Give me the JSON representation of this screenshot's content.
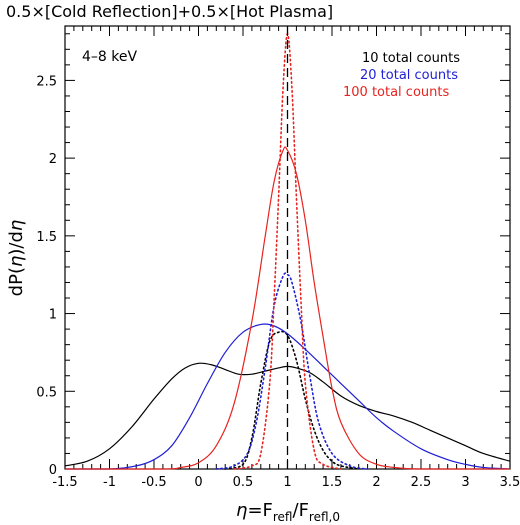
{
  "chart_data": {
    "type": "line",
    "title": "0.5×[Cold Reflection]+0.5×[Hot Plasma]",
    "xlabel": "η=F_refl/F_refl,0",
    "ylabel": "dP(η)/dη",
    "xlim": [
      -1.5,
      3.5
    ],
    "ylim": [
      0,
      2.85
    ],
    "xticks": [
      "-1.5",
      "-1",
      "-0.5",
      "0",
      "0.5",
      "1",
      "1.5",
      "2",
      "2.5",
      "3",
      "3.5"
    ],
    "yticks": [
      "0",
      "0.5",
      "1",
      "1.5",
      "2",
      "2.5"
    ],
    "annotations": [
      "4–8 keV"
    ],
    "reference_line_x": 1,
    "legend_placement": "top-right",
    "legend": [
      {
        "label": "10 total counts",
        "color": "#000000"
      },
      {
        "label": "20 total counts",
        "color": "#1f1fd6"
      },
      {
        "label": "100 total counts",
        "color": "#e8231f"
      }
    ],
    "series": [
      {
        "name": "10 total counts",
        "color": "#000000",
        "style": "solid",
        "x": [
          -1.5,
          -1.25,
          -1.0,
          -0.75,
          -0.5,
          -0.3,
          -0.15,
          0.0,
          0.15,
          0.3,
          0.45,
          0.6,
          0.75,
          0.9,
          1.0,
          1.1,
          1.25,
          1.4,
          1.6,
          1.8,
          2.0,
          2.2,
          2.4,
          2.6,
          2.8,
          3.0,
          3.2,
          3.5
        ],
        "y": [
          0.02,
          0.05,
          0.13,
          0.27,
          0.45,
          0.58,
          0.65,
          0.68,
          0.67,
          0.64,
          0.61,
          0.61,
          0.63,
          0.65,
          0.66,
          0.65,
          0.62,
          0.56,
          0.47,
          0.41,
          0.37,
          0.34,
          0.3,
          0.25,
          0.2,
          0.15,
          0.1,
          0.05
        ]
      },
      {
        "name": "10 total counts (inner)",
        "color": "#000000",
        "style": "dotted",
        "x": [
          0.3,
          0.5,
          0.6,
          0.7,
          0.8,
          0.9,
          1.0,
          1.1,
          1.2,
          1.3,
          1.4,
          1.5,
          1.6,
          1.8
        ],
        "y": [
          0.0,
          0.03,
          0.2,
          0.55,
          0.82,
          0.88,
          0.86,
          0.7,
          0.45,
          0.25,
          0.12,
          0.05,
          0.02,
          0.0
        ]
      },
      {
        "name": "20 total counts",
        "color": "#1f1fd6",
        "style": "solid",
        "x": [
          -1.5,
          -1.0,
          -0.7,
          -0.5,
          -0.3,
          -0.1,
          0.1,
          0.3,
          0.5,
          0.7,
          0.85,
          1.0,
          1.2,
          1.4,
          1.6,
          1.8,
          2.0,
          2.2,
          2.5,
          2.8,
          3.0,
          3.2,
          3.5
        ],
        "y": [
          0.0,
          0.0,
          0.02,
          0.06,
          0.15,
          0.33,
          0.55,
          0.75,
          0.88,
          0.93,
          0.92,
          0.87,
          0.77,
          0.66,
          0.55,
          0.44,
          0.33,
          0.24,
          0.13,
          0.06,
          0.03,
          0.01,
          0.0
        ]
      },
      {
        "name": "20 total counts (inner)",
        "color": "#1f1fd6",
        "style": "dotted",
        "x": [
          0.2,
          0.4,
          0.55,
          0.65,
          0.75,
          0.85,
          0.95,
          1.0,
          1.05,
          1.15,
          1.25,
          1.35,
          1.5,
          1.7,
          1.9
        ],
        "y": [
          0.0,
          0.02,
          0.1,
          0.3,
          0.65,
          1.05,
          1.24,
          1.25,
          1.2,
          0.95,
          0.6,
          0.3,
          0.1,
          0.02,
          0.0
        ]
      },
      {
        "name": "100 total counts",
        "color": "#e8231f",
        "style": "solid",
        "x": [
          -1.5,
          -0.4,
          -0.2,
          0.0,
          0.2,
          0.4,
          0.6,
          0.75,
          0.85,
          0.95,
          1.0,
          1.1,
          1.2,
          1.3,
          1.4,
          1.5,
          1.6,
          1.8,
          2.0,
          2.2,
          2.5,
          3.5
        ],
        "y": [
          0.0,
          0.0,
          0.01,
          0.04,
          0.15,
          0.42,
          0.95,
          1.5,
          1.85,
          2.05,
          2.05,
          1.9,
          1.6,
          1.2,
          0.85,
          0.52,
          0.3,
          0.1,
          0.03,
          0.01,
          0.0,
          0.0
        ]
      },
      {
        "name": "100 total counts (inner)",
        "color": "#e8231f",
        "style": "dotted",
        "x": [
          0.4,
          0.6,
          0.7,
          0.8,
          0.85,
          0.9,
          0.95,
          1.0,
          1.05,
          1.1,
          1.15,
          1.2,
          1.3,
          1.4,
          1.6
        ],
        "y": [
          0.0,
          0.02,
          0.1,
          0.55,
          1.1,
          1.75,
          2.45,
          2.8,
          2.45,
          1.75,
          1.1,
          0.55,
          0.12,
          0.03,
          0.0
        ]
      }
    ]
  }
}
